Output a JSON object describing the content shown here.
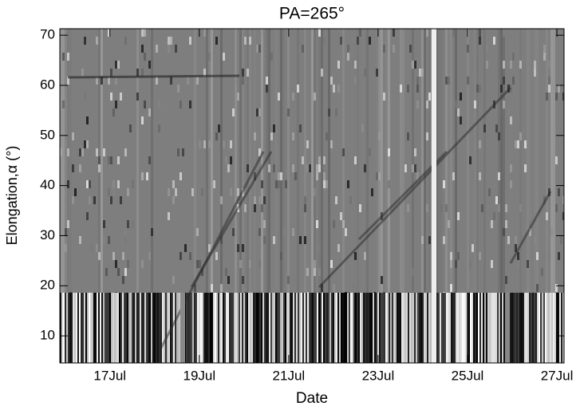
{
  "chart_data": {
    "type": "heatmap",
    "title": "PA=265°",
    "x_label": "Date",
    "y_label": "Elongation,α (°)",
    "xlim": [
      15.88,
      27.16
    ],
    "xticks": [
      {
        "value": 17,
        "label": "17Jul"
      },
      {
        "value": 19,
        "label": "19Jul"
      },
      {
        "value": 21,
        "label": "21Jul"
      },
      {
        "value": 23,
        "label": "23Jul"
      },
      {
        "value": 25,
        "label": "25Jul"
      },
      {
        "value": 27,
        "label": "27Jul"
      }
    ],
    "ylim": [
      4.6,
      71.3
    ],
    "yticks": [
      10,
      20,
      30,
      40,
      50,
      60,
      70
    ]
  }
}
